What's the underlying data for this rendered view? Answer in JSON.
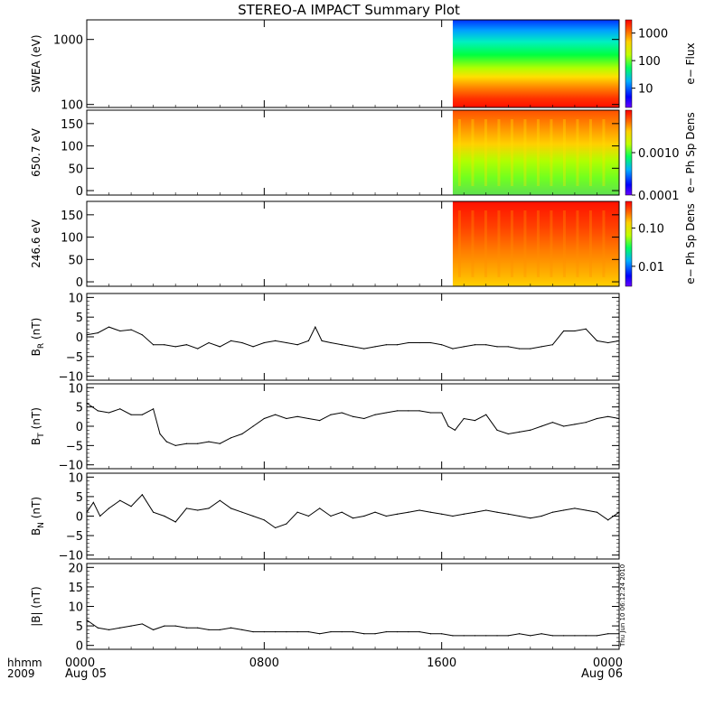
{
  "title": "STEREO-A IMPACT Summary Plot",
  "stamp": "Thu Jun 10 06:12:24 2010",
  "footer": {
    "left_top": "hhmm",
    "left_bottom": "2009"
  },
  "x_axis": {
    "ticks": [
      {
        "t": 0,
        "top": "0000",
        "bottom": "Aug 05"
      },
      {
        "t": 8,
        "top": "0800",
        "bottom": ""
      },
      {
        "t": 16,
        "top": "1600",
        "bottom": ""
      },
      {
        "t": 24,
        "top": "0000",
        "bottom": "Aug 06"
      }
    ]
  },
  "chart_data": [
    {
      "type": "heatmap",
      "ylabel": "SWEA (eV)",
      "y_scale": "log",
      "ylim": [
        90,
        2000
      ],
      "yticks": [
        {
          "v": 1000,
          "label": "1000"
        },
        {
          "v": 100,
          "label": "100"
        }
      ],
      "data_start_hour": 16.5,
      "colorbar": {
        "label": "e− Flux",
        "scale": "log",
        "ticks": [
          {
            "v": 1000,
            "label": "1000"
          },
          {
            "v": 100,
            "label": "100"
          },
          {
            "v": 10,
            "label": "10"
          }
        ],
        "range": [
          2,
          3000
        ]
      }
    },
    {
      "type": "heatmap",
      "ylabel": "650.7 eV",
      "ylim": [
        -10,
        180
      ],
      "yticks": [
        {
          "v": 0,
          "label": "0"
        },
        {
          "v": 50,
          "label": "50"
        },
        {
          "v": 100,
          "label": "100"
        },
        {
          "v": 150,
          "label": "150"
        }
      ],
      "data_start_hour": 16.5,
      "colorbar": {
        "label": "e− Ph Sp Dens",
        "scale": "log",
        "ticks": [
          {
            "v": 0.001,
            "label": "0.0010"
          },
          {
            "v": 0.0001,
            "label": "0.0001"
          }
        ],
        "range": [
          0.0001,
          0.01
        ]
      }
    },
    {
      "type": "heatmap",
      "ylabel": "246.6 eV",
      "ylim": [
        -10,
        180
      ],
      "yticks": [
        {
          "v": 0,
          "label": "0"
        },
        {
          "v": 50,
          "label": "50"
        },
        {
          "v": 100,
          "label": "100"
        },
        {
          "v": 150,
          "label": "150"
        }
      ],
      "data_start_hour": 16.5,
      "colorbar": {
        "label": "e− Ph Sp Dens",
        "scale": "log",
        "ticks": [
          {
            "v": 0.1,
            "label": "0.10"
          },
          {
            "v": 0.01,
            "label": "0.01"
          }
        ],
        "range": [
          0.003,
          0.5
        ]
      }
    },
    {
      "type": "line",
      "ylabel_main": "B",
      "ylabel_sub": "R",
      "ylabel_unit": " (nT)",
      "ylim": [
        -11,
        11
      ],
      "yticks": [
        {
          "v": -10,
          "label": "−10"
        },
        {
          "v": -5,
          "label": "−5"
        },
        {
          "v": 0,
          "label": "0"
        },
        {
          "v": 5,
          "label": "5"
        },
        {
          "v": 10,
          "label": "10"
        }
      ],
      "x": [
        0,
        0.5,
        1,
        1.5,
        2,
        2.5,
        3,
        3.5,
        4,
        4.5,
        5,
        5.5,
        6,
        6.5,
        7,
        7.5,
        8,
        8.5,
        9,
        9.5,
        10,
        10.3,
        10.6,
        11,
        11.5,
        12,
        12.5,
        13,
        13.5,
        14,
        14.5,
        15,
        15.5,
        16,
        16.5,
        17,
        17.5,
        18,
        18.5,
        19,
        19.5,
        20,
        20.5,
        21,
        21.5,
        22,
        22.5,
        23,
        23.5,
        24
      ],
      "y": [
        0.5,
        1,
        2.5,
        1.5,
        1.8,
        0.5,
        -2,
        -2,
        -2.5,
        -2,
        -3,
        -1.5,
        -2.5,
        -1,
        -1.5,
        -2.5,
        -1.5,
        -1,
        -1.5,
        -2,
        -1,
        2.5,
        -1,
        -1.5,
        -2,
        -2.5,
        -3,
        -2.5,
        -2,
        -2,
        -1.5,
        -1.5,
        -1.5,
        -2,
        -3,
        -2.5,
        -2,
        -2,
        -2.5,
        -2.5,
        -3,
        -3,
        -2.5,
        -2,
        1.5,
        1.5,
        2,
        -1,
        -1.5,
        -1
      ]
    },
    {
      "type": "line",
      "ylabel_main": "B",
      "ylabel_sub": "T",
      "ylabel_unit": " (nT)",
      "ylim": [
        -11,
        11
      ],
      "yticks": [
        {
          "v": -10,
          "label": "−10"
        },
        {
          "v": -5,
          "label": "−5"
        },
        {
          "v": 0,
          "label": "0"
        },
        {
          "v": 5,
          "label": "5"
        },
        {
          "v": 10,
          "label": "10"
        }
      ],
      "x": [
        0,
        0.5,
        1,
        1.5,
        2,
        2.5,
        3,
        3.3,
        3.6,
        4,
        4.5,
        5,
        5.5,
        6,
        6.5,
        7,
        7.5,
        8,
        8.5,
        9,
        9.5,
        10,
        10.5,
        11,
        11.5,
        12,
        12.5,
        13,
        13.5,
        14,
        14.5,
        15,
        15.5,
        16,
        16.3,
        16.6,
        17,
        17.5,
        18,
        18.5,
        19,
        19.5,
        20,
        20.5,
        21,
        21.5,
        22,
        22.5,
        23,
        23.5,
        24
      ],
      "y": [
        6,
        4,
        3.5,
        4.5,
        3,
        3,
        4.5,
        -2,
        -4,
        -5,
        -4.5,
        -4.5,
        -4,
        -4.5,
        -3,
        -2,
        0,
        2,
        3,
        2,
        2.5,
        2,
        1.5,
        3,
        3.5,
        2.5,
        2,
        3,
        3.5,
        4,
        4,
        4,
        3.5,
        3.5,
        0,
        -1,
        2,
        1.5,
        3,
        -1,
        -2,
        -1.5,
        -1,
        0,
        1,
        0,
        0.5,
        1,
        2,
        2.5,
        2
      ]
    },
    {
      "type": "line",
      "ylabel_main": "B",
      "ylabel_sub": "N",
      "ylabel_unit": " (nT)",
      "ylim": [
        -11,
        11
      ],
      "yticks": [
        {
          "v": -10,
          "label": "−10"
        },
        {
          "v": -5,
          "label": "−5"
        },
        {
          "v": 0,
          "label": "0"
        },
        {
          "v": 5,
          "label": "5"
        },
        {
          "v": 10,
          "label": "10"
        }
      ],
      "x": [
        0,
        0.3,
        0.6,
        1,
        1.5,
        2,
        2.5,
        3,
        3.5,
        4,
        4.5,
        5,
        5.5,
        6,
        6.5,
        7,
        7.5,
        8,
        8.5,
        9,
        9.5,
        10,
        10.5,
        11,
        11.5,
        12,
        12.5,
        13,
        13.5,
        14,
        14.5,
        15,
        15.5,
        16,
        16.5,
        17,
        17.5,
        18,
        18.5,
        19,
        19.5,
        20,
        20.5,
        21,
        21.5,
        22,
        22.5,
        23,
        23.5,
        24
      ],
      "y": [
        1,
        3.5,
        0,
        2,
        4,
        2.5,
        5.5,
        1,
        0,
        -1.5,
        2,
        1.5,
        2,
        4,
        2,
        1,
        0,
        -1,
        -3,
        -2,
        1,
        0,
        2,
        0,
        1,
        -0.5,
        0,
        1,
        0,
        0.5,
        1,
        1.5,
        1,
        0.5,
        0,
        0.5,
        1,
        1.5,
        1,
        0.5,
        0,
        -0.5,
        0,
        1,
        1.5,
        2,
        1.5,
        1,
        -1,
        1
      ]
    },
    {
      "type": "line",
      "ylabel_main": "|B|",
      "ylabel_sub": "",
      "ylabel_unit": " (nT)",
      "ylim": [
        -1,
        21
      ],
      "yticks": [
        {
          "v": 0,
          "label": "0"
        },
        {
          "v": 5,
          "label": "5"
        },
        {
          "v": 10,
          "label": "10"
        },
        {
          "v": 15,
          "label": "15"
        },
        {
          "v": 20,
          "label": "20"
        }
      ],
      "x": [
        0,
        0.5,
        1,
        1.5,
        2,
        2.5,
        3,
        3.5,
        4,
        4.5,
        5,
        5.5,
        6,
        6.5,
        7,
        7.5,
        8,
        8.5,
        9,
        9.5,
        10,
        10.5,
        11,
        11.5,
        12,
        12.5,
        13,
        13.5,
        14,
        14.5,
        15,
        15.5,
        16,
        16.5,
        17,
        17.5,
        18,
        18.5,
        19,
        19.5,
        20,
        20.5,
        21,
        21.5,
        22,
        22.5,
        23,
        23.5,
        24
      ],
      "y": [
        6.5,
        4.5,
        4,
        4.5,
        5,
        5.5,
        4,
        5,
        5,
        4.5,
        4.5,
        4,
        4,
        4.5,
        4,
        3.5,
        3.5,
        3.5,
        3.5,
        3.5,
        3.5,
        3,
        3.5,
        3.5,
        3.5,
        3,
        3,
        3.5,
        3.5,
        3.5,
        3.5,
        3,
        3,
        2.5,
        2.5,
        2.5,
        2.5,
        2.5,
        2.5,
        3,
        2.5,
        3,
        2.5,
        2.5,
        2.5,
        2.5,
        2.5,
        3,
        3
      ]
    }
  ]
}
